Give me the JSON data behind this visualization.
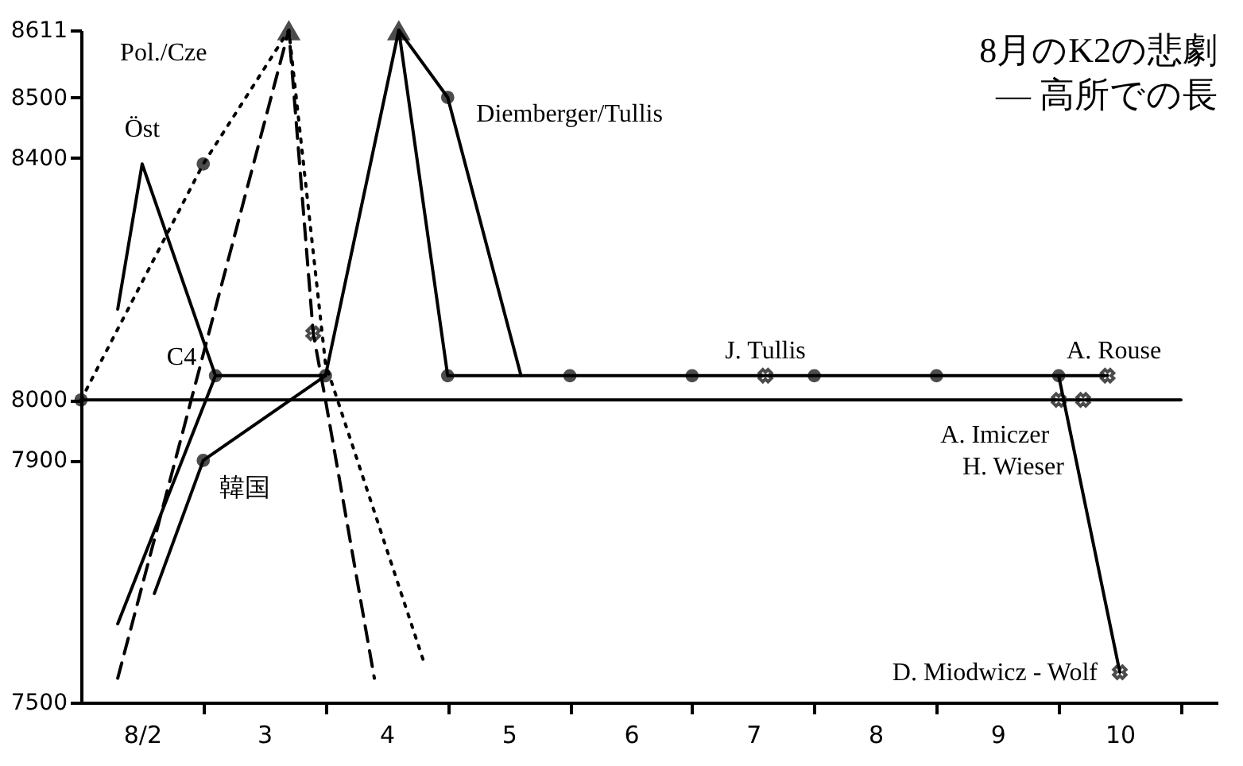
{
  "chart_data": {
    "type": "line",
    "title": "8月のK2の悲劇",
    "subtitle": "— 高所での長",
    "xlim": [
      2,
      11.3
    ],
    "xticks": [
      {
        "value": 2.5,
        "label": "8/2"
      },
      {
        "value": 3,
        "label": null
      },
      {
        "value": 3.5,
        "label": "3"
      },
      {
        "value": 4,
        "label": null
      },
      {
        "value": 4.5,
        "label": "4"
      },
      {
        "value": 5,
        "label": null
      },
      {
        "value": 5.5,
        "label": "5"
      },
      {
        "value": 6,
        "label": null
      },
      {
        "value": 6.5,
        "label": "6"
      },
      {
        "value": 7,
        "label": null
      },
      {
        "value": 7.5,
        "label": "7"
      },
      {
        "value": 8,
        "label": null
      },
      {
        "value": 8.5,
        "label": "8"
      },
      {
        "value": 9,
        "label": null
      },
      {
        "value": 9.5,
        "label": "9"
      },
      {
        "value": 10,
        "label": null
      },
      {
        "value": 10.5,
        "label": "10"
      },
      {
        "value": 11,
        "label": null
      }
    ],
    "ylim": [
      7500,
      8611
    ],
    "yticks": [
      7500,
      7900,
      8000,
      8400,
      8500,
      8611
    ],
    "series": [
      {
        "color": "#000000",
        "line_style": "solid",
        "x": [
          2,
          11.0
        ],
        "values": [
          8000,
          8000
        ]
      },
      {
        "name": "Pol./Cze",
        "color": "#000000",
        "line_style": "dotted",
        "x": [
          2,
          3.0,
          3.7,
          4.0,
          4.8
        ],
        "values": [
          8000,
          8390,
          8611,
          8060,
          7570
        ]
      },
      {
        "name": "韓国",
        "color": "#000000",
        "line_style": "dashed",
        "x": [
          2.3,
          3.7,
          3.9,
          4.0,
          4.4
        ],
        "values": [
          7540,
          8611,
          8110,
          8000,
          7540
        ]
      },
      {
        "name": "Öst",
        "color": "#000000",
        "line_style": "solid",
        "x": [
          2.3,
          2.5,
          3.1
        ],
        "values": [
          8150,
          8390,
          8040
        ]
      },
      {
        "name": "Diemberger/Tullis",
        "color": "#000000",
        "line_style": "solid",
        "x": [
          2.3,
          3.1,
          4.0,
          4.6,
          5.0,
          5.6
        ],
        "values": [
          7630,
          8040,
          8040,
          8611,
          8500,
          8040
        ]
      },
      {
        "color": "#000000",
        "line_style": "solid",
        "x": [
          2.6,
          3.0,
          4.0
        ],
        "values": [
          7680,
          7900,
          8040
        ]
      },
      {
        "color": "#000000",
        "line_style": "solid",
        "x": [
          4.6,
          5.0,
          10.4
        ],
        "values": [
          8611,
          8040,
          8040
        ]
      },
      {
        "color": "#000000",
        "line_style": "solid",
        "x": [
          10.0,
          10.5
        ],
        "values": [
          8040,
          7550
        ]
      },
      {
        "type": "scatter",
        "color": "#000000",
        "marker": "circle",
        "x": [
          2,
          3.0,
          3.1,
          3.0,
          4.0,
          5.0,
          5.0,
          6.0,
          7.0,
          8.0,
          9.0,
          10.0
        ],
        "values": [
          8000,
          8390,
          8040,
          7900,
          8040,
          8500,
          8040,
          8040,
          8040,
          8040,
          8040,
          8040
        ]
      },
      {
        "type": "scatter",
        "color": "#000000",
        "marker": "cross",
        "x": [
          3.9,
          7.6,
          10.4,
          10.0,
          10.2,
          10.5
        ],
        "values": [
          8110,
          8040,
          8040,
          8000,
          8000,
          7550
        ]
      },
      {
        "type": "scatter",
        "color": "#000000",
        "marker": "triangle",
        "x": [
          3.7,
          4.6
        ],
        "values": [
          8611,
          8611
        ]
      }
    ],
    "annotations": [
      {
        "text": "C4",
        "x": 3.1,
        "y": 8040
      },
      {
        "text": "J. Tullis",
        "x": 7.6,
        "y": 8040
      },
      {
        "text": "A. Rouse",
        "x": 10.4,
        "y": 8040
      },
      {
        "text": "A. Imiczer",
        "x": 10.0,
        "y": 8000
      },
      {
        "text": "H. Wieser",
        "x": 10.2,
        "y": 8000
      },
      {
        "text": "D. Miodwicz - Wolf",
        "x": 10.5,
        "y": 7550
      }
    ]
  }
}
